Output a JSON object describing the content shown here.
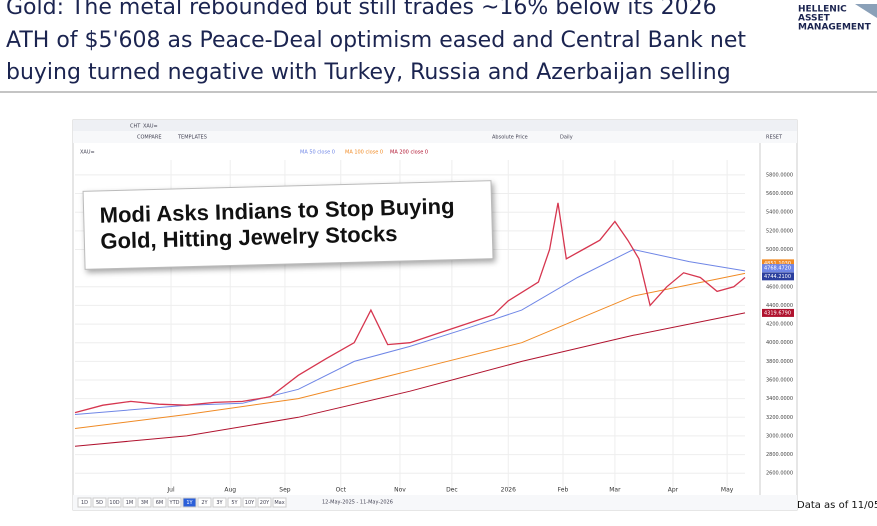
{
  "header": {
    "title_lines": [
      "Gold: The metal rebounded but still trades ~16% below its 2026",
      "ATH of $5'608 as Peace-Deal optimism eased and Central Bank net",
      "buying turned negative with Turkey, Russia and Azerbaijan selling"
    ],
    "logo": [
      "HELLENIC",
      "ASSET",
      "MANAGEMENT"
    ]
  },
  "footer": "Data as of 11/05",
  "chart_ui": {
    "toolbar": [
      "CHT",
      "XAU=",
      "COMPARE",
      "TEMPLATES",
      "Absolute Price",
      "Daily",
      "RESET"
    ],
    "ranges": [
      "1D",
      "5D",
      "10D",
      "1M",
      "3M",
      "6M",
      "YTD",
      "1Y",
      "2Y",
      "3Y",
      "5Y",
      "10Y",
      "20Y",
      "Max"
    ],
    "date_range": "12-May-2025 - 11-May-2026",
    "headline_lines": [
      "Modi Asks Indians to Stop Buying",
      "Gold, Hitting Jewelry Stocks"
    ]
  },
  "chart_data": {
    "type": "line",
    "xlim": [
      0,
      12
    ],
    "xticks": [
      {
        "value": 1.72,
        "label": "Jul"
      },
      {
        "value": 2.78,
        "label": "Aug"
      },
      {
        "value": 3.76,
        "label": "Sep"
      },
      {
        "value": 4.76,
        "label": "Oct"
      },
      {
        "value": 5.82,
        "label": "Nov"
      },
      {
        "value": 6.75,
        "label": "Dec"
      },
      {
        "value": 7.76,
        "label": "2026"
      },
      {
        "value": 8.74,
        "label": "Feb"
      },
      {
        "value": 9.67,
        "label": "Mar"
      },
      {
        "value": 10.71,
        "label": "Apr"
      },
      {
        "value": 11.68,
        "label": "May"
      }
    ],
    "ylim": [
      2420,
      5960
    ],
    "yticks": [
      {
        "value": 2600,
        "label": "2600.0000"
      },
      {
        "value": 2800,
        "label": "2800.0000"
      },
      {
        "value": 3000,
        "label": "3000.0000"
      },
      {
        "value": 3200,
        "label": "3200.0000"
      },
      {
        "value": 3400,
        "label": "3400.0000"
      },
      {
        "value": 3600,
        "label": "3600.0000"
      },
      {
        "value": 3800,
        "label": "3800.0000"
      },
      {
        "value": 4000,
        "label": "4000.0000"
      },
      {
        "value": 4200,
        "label": "4200.0000"
      },
      {
        "value": 4400,
        "label": "4400.0000"
      },
      {
        "value": 4600,
        "label": "4600.0000"
      },
      {
        "value": 5000,
        "label": "5000.0000"
      },
      {
        "value": 5200,
        "label": "5200.0000"
      },
      {
        "value": 5400,
        "label": "5400.0000"
      },
      {
        "value": 5600,
        "label": "5600.0000"
      },
      {
        "value": 5800,
        "label": "5800.0000"
      }
    ],
    "grid": true,
    "series": [
      {
        "name": "XAU=",
        "color": "#d6364f",
        "x": [
          0,
          0.5,
          1,
          1.5,
          2,
          2.5,
          3,
          3.5,
          4,
          4.5,
          5,
          5.3,
          5.6,
          6,
          6.5,
          7,
          7.5,
          7.76,
          8.3,
          8.5,
          8.65,
          8.8,
          9.1,
          9.4,
          9.67,
          9.9,
          10.1,
          10.3,
          10.6,
          10.9,
          11.2,
          11.5,
          11.8,
          12
        ],
        "values": [
          3250,
          3330,
          3370,
          3340,
          3330,
          3360,
          3370,
          3420,
          3650,
          3830,
          4000,
          4350,
          3980,
          4000,
          4100,
          4200,
          4300,
          4450,
          4650,
          5000,
          5500,
          4900,
          5000,
          5100,
          5300,
          5100,
          4900,
          4400,
          4600,
          4750,
          4700,
          4550,
          4600,
          4700
        ]
      },
      {
        "name": "MA 50 close 0",
        "color": "#6f86e6",
        "x": [
          0,
          2,
          3,
          4,
          5,
          6,
          7,
          8,
          9,
          10,
          11,
          12
        ],
        "values": [
          3230,
          3330,
          3350,
          3500,
          3800,
          3960,
          4150,
          4350,
          4700,
          5000,
          4870,
          4770
        ]
      },
      {
        "name": "MA 100 close 0",
        "color": "#f08a24",
        "x": [
          0,
          2,
          4,
          6,
          8,
          10,
          12
        ],
        "values": [
          3080,
          3230,
          3400,
          3700,
          4000,
          4500,
          4744
        ]
      },
      {
        "name": "MA 200 close 0",
        "color": "#b0122e",
        "x": [
          0,
          2,
          4,
          6,
          8,
          10,
          12
        ],
        "values": [
          2890,
          3000,
          3200,
          3480,
          3800,
          4080,
          4320
        ]
      }
    ],
    "price_tags": [
      {
        "value": 4851.103,
        "label": "4851.1030",
        "color": "#f08a24"
      },
      {
        "value": 4768.472,
        "label": "4768.4720",
        "color": "#6f86e6"
      },
      {
        "value": 4744.21,
        "label": "4744.2100",
        "color": "#2b3f9e"
      },
      {
        "value": 4319.679,
        "label": "4319.6790",
        "color": "#b0122e"
      }
    ]
  }
}
